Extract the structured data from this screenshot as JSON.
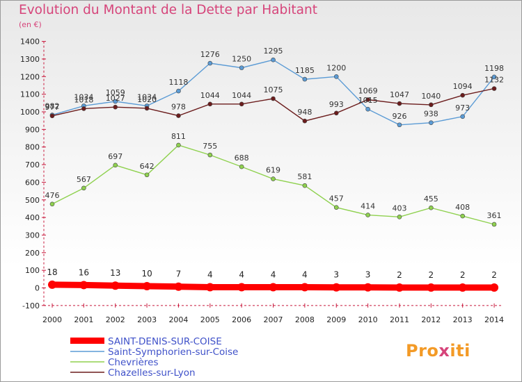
{
  "title": "Evolution du Montant de la Dette par Habitant",
  "unit": "(en €)",
  "logo": {
    "p": "Pro",
    "x": "x",
    "i": "iti",
    "colors": [
      "#f39a26",
      "#39a8d9",
      "#7fc242",
      "#d6447a"
    ]
  },
  "chart_data": {
    "type": "line",
    "x": [
      "2000",
      "2001",
      "2002",
      "2003",
      "2004",
      "2005",
      "2006",
      "2007",
      "2008",
      "2009",
      "2010",
      "2011",
      "2012",
      "2013",
      "2014"
    ],
    "ylim": [
      -100,
      1400
    ],
    "yticks": [
      -100,
      0,
      100,
      200,
      300,
      400,
      500,
      600,
      700,
      800,
      900,
      1000,
      1100,
      1200,
      1300,
      1400
    ],
    "grid": false,
    "legend_position": "bottom-left",
    "series": [
      {
        "name": "SAINT-DENIS-SUR-COISE",
        "color": "#ff0000",
        "thick": true,
        "values": [
          18,
          16,
          13,
          10,
          7,
          4,
          4,
          4,
          4,
          3,
          3,
          2,
          2,
          2,
          2
        ]
      },
      {
        "name": "Saint-Symphorien-sur-Coise",
        "color": "#5b9bd5",
        "thick": false,
        "values": [
          982,
          1034,
          1059,
          1034,
          1118,
          1276,
          1250,
          1295,
          1185,
          1200,
          1015,
          926,
          938,
          973,
          1198
        ]
      },
      {
        "name": "Chevrières",
        "color": "#8fd14f",
        "thick": false,
        "values": [
          476,
          567,
          697,
          642,
          811,
          755,
          688,
          619,
          581,
          457,
          414,
          403,
          455,
          408,
          361
        ]
      },
      {
        "name": "Chazelles-sur-Lyon",
        "color": "#6b1c1c",
        "thick": false,
        "values": [
          977,
          1018,
          1027,
          1020,
          978,
          1044,
          1044,
          1075,
          948,
          993,
          1069,
          1047,
          1040,
          1094,
          1132
        ]
      }
    ]
  }
}
